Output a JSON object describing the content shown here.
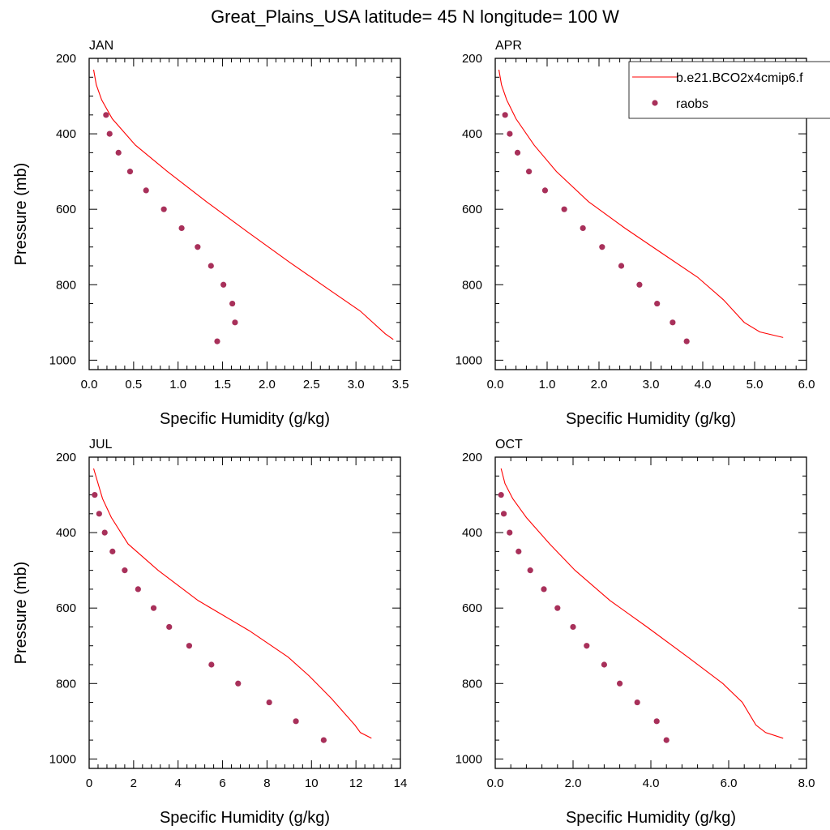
{
  "title": "Great_Plains_USA  latitude= 45 N longitude= 100 W",
  "legend": {
    "model_label": "b.e21.BCO2x4cmip6.f",
    "obs_label": "raobs"
  },
  "colors": {
    "model": "#ff0000",
    "obs": "#a8305a"
  },
  "chart_data": [
    {
      "type": "line",
      "panel_label": "JAN",
      "xlabel": "Specific Humidity (g/kg)",
      "ylabel": "Pressure (mb)",
      "xlim": [
        0,
        3.5
      ],
      "ylim": [
        1025,
        200
      ],
      "xticks": [
        0,
        0.5,
        1.0,
        1.5,
        2.0,
        2.5,
        3.0,
        3.5
      ],
      "xtick_labels": [
        "0.0",
        "0.5",
        "1.0",
        "1.5",
        "2.0",
        "2.5",
        "3.0",
        "3.5"
      ],
      "yticks": [
        200,
        400,
        600,
        800,
        1000
      ],
      "ytick_labels": [
        "200",
        "400",
        "600",
        "800",
        "1000"
      ],
      "show_y_title": true,
      "show_legend": false,
      "series": [
        {
          "name": "b.e21.BCO2x4cmip6.f",
          "pressure": [
            230,
            270,
            310,
            360,
            430,
            500,
            580,
            660,
            740,
            810,
            870,
            930,
            945
          ],
          "values": [
            0.05,
            0.08,
            0.14,
            0.26,
            0.52,
            0.88,
            1.32,
            1.78,
            2.25,
            2.68,
            3.05,
            3.33,
            3.42
          ]
        },
        {
          "name": "raobs",
          "pressure": [
            350,
            400,
            450,
            500,
            550,
            600,
            650,
            700,
            750,
            800,
            850,
            900,
            950
          ],
          "values": [
            0.19,
            0.23,
            0.33,
            0.46,
            0.64,
            0.84,
            1.04,
            1.22,
            1.37,
            1.51,
            1.61,
            1.64,
            1.44
          ]
        }
      ]
    },
    {
      "type": "line",
      "panel_label": "APR",
      "xlabel": "Specific Humidity (g/kg)",
      "ylabel": "",
      "xlim": [
        0,
        6.0
      ],
      "ylim": [
        1025,
        200
      ],
      "xticks": [
        0,
        1,
        2,
        3,
        4,
        5,
        6
      ],
      "xtick_labels": [
        "0.0",
        "1.0",
        "2.0",
        "3.0",
        "4.0",
        "5.0",
        "6.0"
      ],
      "yticks": [
        200,
        400,
        600,
        800,
        1000
      ],
      "ytick_labels": [
        "200",
        "400",
        "600",
        "800",
        "1000"
      ],
      "show_y_title": false,
      "show_legend": true,
      "series": [
        {
          "name": "b.e21.BCO2x4cmip6.f",
          "pressure": [
            230,
            270,
            310,
            360,
            430,
            500,
            580,
            650,
            720,
            780,
            840,
            900,
            925,
            940
          ],
          "values": [
            0.07,
            0.12,
            0.22,
            0.4,
            0.75,
            1.18,
            1.8,
            2.5,
            3.25,
            3.9,
            4.4,
            4.8,
            5.1,
            5.55
          ]
        },
        {
          "name": "raobs",
          "pressure": [
            350,
            400,
            450,
            500,
            550,
            600,
            650,
            700,
            750,
            800,
            850,
            900,
            950
          ],
          "values": [
            0.19,
            0.28,
            0.43,
            0.65,
            0.96,
            1.33,
            1.69,
            2.06,
            2.43,
            2.78,
            3.12,
            3.42,
            3.69
          ]
        }
      ]
    },
    {
      "type": "line",
      "panel_label": "JUL",
      "xlabel": "Specific Humidity (g/kg)",
      "ylabel": "Pressure (mb)",
      "xlim": [
        0,
        14
      ],
      "ylim": [
        1025,
        200
      ],
      "xticks": [
        0,
        2,
        4,
        6,
        8,
        10,
        12,
        14
      ],
      "xtick_labels": [
        "0",
        "2",
        "4",
        "6",
        "8",
        "10",
        "12",
        "14"
      ],
      "yticks": [
        200,
        400,
        600,
        800,
        1000
      ],
      "ytick_labels": [
        "200",
        "400",
        "600",
        "800",
        "1000"
      ],
      "show_y_title": true,
      "show_legend": false,
      "series": [
        {
          "name": "b.e21.BCO2x4cmip6.f",
          "pressure": [
            230,
            270,
            310,
            360,
            430,
            500,
            580,
            660,
            730,
            780,
            840,
            910,
            930,
            945
          ],
          "values": [
            0.2,
            0.4,
            0.6,
            1.0,
            1.75,
            3.1,
            4.9,
            7.2,
            8.95,
            9.9,
            10.9,
            11.95,
            12.2,
            12.7
          ]
        },
        {
          "name": "raobs",
          "pressure": [
            300,
            350,
            400,
            450,
            500,
            550,
            600,
            650,
            700,
            750,
            800,
            850,
            900,
            950
          ],
          "values": [
            0.25,
            0.45,
            0.7,
            1.05,
            1.6,
            2.2,
            2.9,
            3.6,
            4.5,
            5.5,
            6.7,
            8.1,
            9.3,
            10.55
          ]
        }
      ]
    },
    {
      "type": "line",
      "panel_label": "OCT",
      "xlabel": "Specific Humidity (g/kg)",
      "ylabel": "",
      "xlim": [
        0,
        8.0
      ],
      "ylim": [
        1025,
        200
      ],
      "xticks": [
        0,
        2,
        4,
        6,
        8
      ],
      "xtick_labels": [
        "0.0",
        "2.0",
        "4.0",
        "6.0",
        "8.0"
      ],
      "yticks": [
        200,
        400,
        600,
        800,
        1000
      ],
      "ytick_labels": [
        "200",
        "400",
        "600",
        "800",
        "1000"
      ],
      "show_y_title": false,
      "show_legend": false,
      "series": [
        {
          "name": "b.e21.BCO2x4cmip6.f",
          "pressure": [
            230,
            270,
            310,
            360,
            430,
            500,
            580,
            650,
            730,
            800,
            850,
            910,
            930,
            945
          ],
          "values": [
            0.15,
            0.25,
            0.45,
            0.8,
            1.4,
            2.05,
            2.95,
            3.9,
            4.95,
            5.85,
            6.35,
            6.7,
            6.95,
            7.4
          ]
        },
        {
          "name": "raobs",
          "pressure": [
            300,
            350,
            400,
            450,
            500,
            550,
            600,
            650,
            700,
            750,
            800,
            850,
            900,
            950
          ],
          "values": [
            0.15,
            0.22,
            0.37,
            0.6,
            0.9,
            1.25,
            1.6,
            2.0,
            2.35,
            2.8,
            3.2,
            3.65,
            4.15,
            4.4
          ]
        }
      ]
    }
  ]
}
